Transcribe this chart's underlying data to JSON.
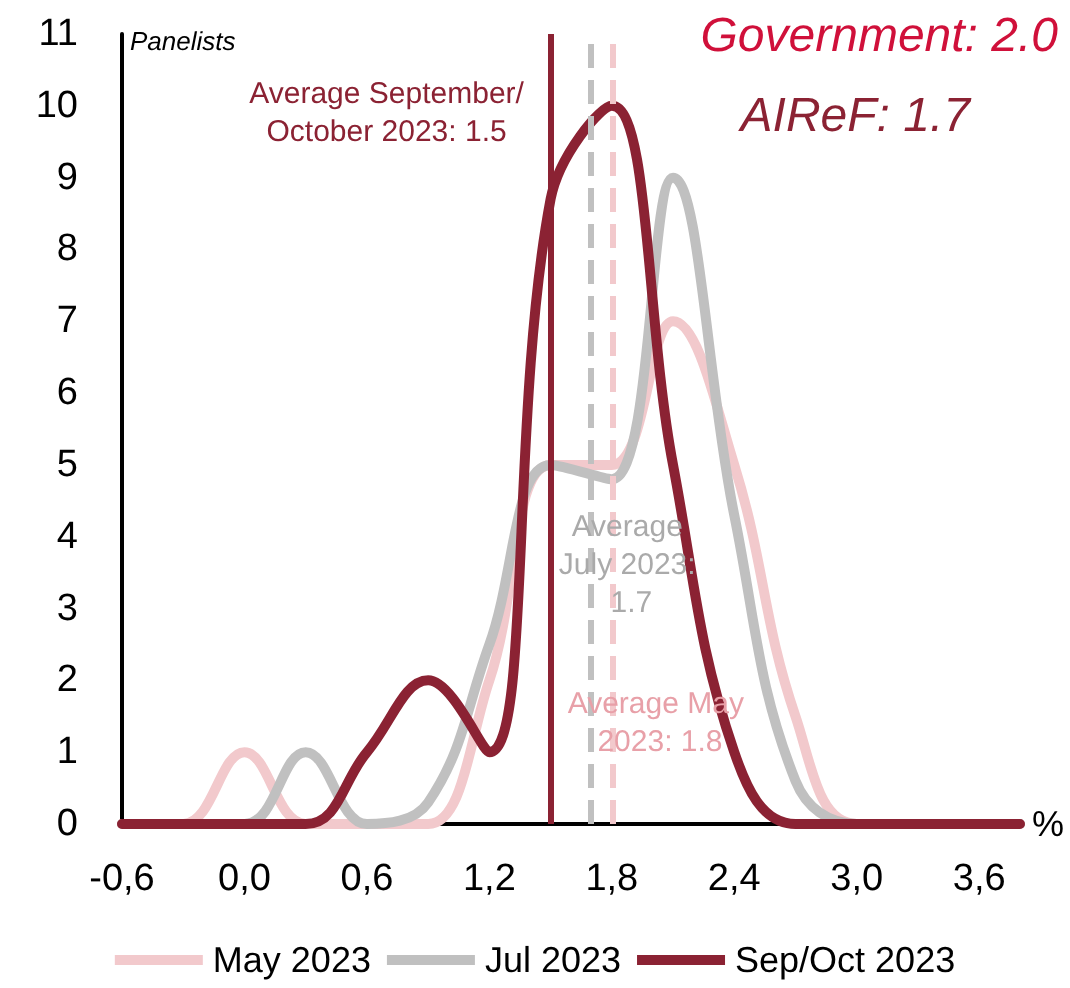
{
  "chart_data": {
    "type": "line",
    "ylabel": "Panelists",
    "xlabel": "%",
    "xlim": [
      -0.6,
      3.8
    ],
    "xticks": [
      {
        "value": -0.6,
        "label": "-0,6"
      },
      {
        "value": 0,
        "label": "0,0"
      },
      {
        "value": 0.6,
        "label": "0,6"
      },
      {
        "value": 1.2,
        "label": "1,2"
      },
      {
        "value": 1.8,
        "label": "1,8"
      },
      {
        "value": 2.4,
        "label": "2,4"
      },
      {
        "value": 3,
        "label": "3,0"
      },
      {
        "value": 3.6,
        "label": "3,6"
      }
    ],
    "ylim": [
      0,
      11
    ],
    "yticks": [
      0,
      1,
      2,
      3,
      4,
      5,
      6,
      7,
      8,
      9,
      10,
      11
    ],
    "grid": false,
    "legend": "bottom",
    "marker": "none",
    "line_style": "solid",
    "series": [
      {
        "name": "May 2023",
        "color": "#f2c9cc",
        "x": [
          -0.6,
          -0.3,
          0,
          0.3,
          0.6,
          0.9,
          1.2,
          1.5,
          1.8,
          2.1,
          2.4,
          2.7,
          3,
          3.8
        ],
        "values": [
          0,
          0,
          1,
          0,
          0,
          0,
          2,
          5,
          5,
          7,
          5,
          1.5,
          0,
          0
        ]
      },
      {
        "name": "Jul 2023",
        "color": "#c0c0c0",
        "x": [
          -0.6,
          0,
          0.3,
          0.6,
          0.9,
          1.2,
          1.5,
          1.8,
          2.1,
          2.4,
          2.7,
          3,
          3.8
        ],
        "values": [
          0,
          0,
          1,
          0,
          0.3,
          2.5,
          5,
          4.8,
          9,
          4.3,
          0.6,
          0,
          0
        ]
      },
      {
        "name": "Sep/Oct 2023",
        "color": "#8b2233",
        "x": [
          -0.6,
          0.3,
          0.6,
          0.9,
          1.2,
          1.5,
          1.8,
          2.1,
          2.4,
          2.7,
          3.8
        ],
        "values": [
          0,
          0,
          1,
          2,
          1,
          8.7,
          10,
          5,
          1,
          0,
          0
        ]
      }
    ],
    "ref_lines": [
      {
        "axis": "x",
        "value": 1.5,
        "label": "Average September/October 2023: 1.5",
        "color": "#8b2233",
        "line_style": "solid"
      },
      {
        "axis": "x",
        "value": 1.7,
        "label": "Average July 2023: 1.7",
        "color": "#c0c0c0",
        "line_style": "dashed"
      },
      {
        "axis": "x",
        "value": 1.8,
        "label": "Average May 2023: 1.8",
        "color": "#f2c9cc",
        "line_style": "dashed"
      }
    ],
    "annotations": [
      "Government: 2.0",
      "AIReF: 1.7"
    ]
  }
}
